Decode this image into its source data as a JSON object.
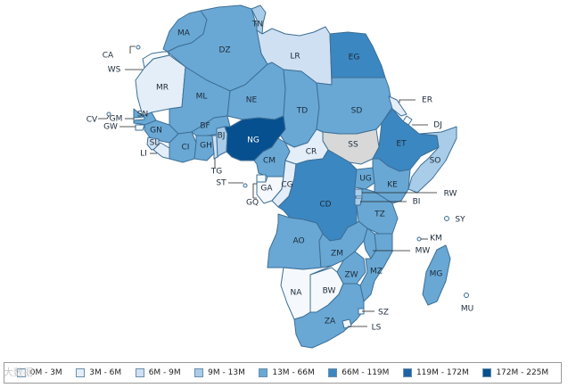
{
  "legend": {
    "bins": [
      {
        "label": "0M - 3M",
        "color": "#f5f9fd"
      },
      {
        "label": "3M - 6M",
        "color": "#e4eef8"
      },
      {
        "label": "6M - 9M",
        "color": "#cfe0f2"
      },
      {
        "label": "9M - 13M",
        "color": "#a9cce8"
      },
      {
        "label": "13M - 66M",
        "color": "#69a8d4"
      },
      {
        "label": "66M - 119M",
        "color": "#3b87c1"
      },
      {
        "label": "119M - 172M",
        "color": "#1d64a7"
      },
      {
        "label": "172M - 225M",
        "color": "#07508f"
      }
    ]
  },
  "no_data_color": "#d8d8d8",
  "watermark": "大数据",
  "countries": [
    {
      "code": "MA",
      "bin": 4
    },
    {
      "code": "DZ",
      "bin": 4
    },
    {
      "code": "TN",
      "bin": 3
    },
    {
      "code": "LR",
      "bin": 2
    },
    {
      "code": "EG",
      "bin": 5
    },
    {
      "code": "WS",
      "bin": 0
    },
    {
      "code": "MR",
      "bin": 1
    },
    {
      "code": "ML",
      "bin": 4
    },
    {
      "code": "NE",
      "bin": 4
    },
    {
      "code": "TD",
      "bin": 4
    },
    {
      "code": "SD",
      "bin": 4
    },
    {
      "code": "ER",
      "bin": 1
    },
    {
      "code": "DJ",
      "bin": 0
    },
    {
      "code": "SN",
      "bin": 4
    },
    {
      "code": "GM",
      "bin": 1
    },
    {
      "code": "GW",
      "bin": 0
    },
    {
      "code": "GN",
      "bin": 4
    },
    {
      "code": "SL",
      "bin": 2
    },
    {
      "code": "LI",
      "bin": 1
    },
    {
      "code": "CI",
      "bin": 4
    },
    {
      "code": "BF",
      "bin": 4
    },
    {
      "code": "GH",
      "bin": 4
    },
    {
      "code": "TG",
      "bin": 2
    },
    {
      "code": "BJ",
      "bin": 3
    },
    {
      "code": "NG",
      "bin": 7
    },
    {
      "code": "CM",
      "bin": 4
    },
    {
      "code": "CR",
      "bin": 1
    },
    {
      "code": "SS",
      "bin": -1
    },
    {
      "code": "ET",
      "bin": 5
    },
    {
      "code": "SO",
      "bin": 3
    },
    {
      "code": "ST",
      "bin": 0
    },
    {
      "code": "GQ",
      "bin": 0
    },
    {
      "code": "GA",
      "bin": 0
    },
    {
      "code": "CG",
      "bin": 1
    },
    {
      "code": "CD",
      "bin": 5
    },
    {
      "code": "UG",
      "bin": 4
    },
    {
      "code": "KE",
      "bin": 4
    },
    {
      "code": "RW",
      "bin": 3
    },
    {
      "code": "BI",
      "bin": 3
    },
    {
      "code": "TZ",
      "bin": 4
    },
    {
      "code": "SY",
      "bin": 0
    },
    {
      "code": "AO",
      "bin": 4
    },
    {
      "code": "ZM",
      "bin": 4
    },
    {
      "code": "MW",
      "bin": 4
    },
    {
      "code": "KM",
      "bin": 0
    },
    {
      "code": "MZ",
      "bin": 4
    },
    {
      "code": "ZW",
      "bin": 4
    },
    {
      "code": "MG",
      "bin": 4
    },
    {
      "code": "NA",
      "bin": 0
    },
    {
      "code": "BW",
      "bin": 0
    },
    {
      "code": "MU",
      "bin": 0
    },
    {
      "code": "SZ",
      "bin": 0
    },
    {
      "code": "ZA",
      "bin": 4
    },
    {
      "code": "LS",
      "bin": 0
    },
    {
      "code": "CV",
      "bin": 0
    },
    {
      "code": "CA",
      "bin": 0
    }
  ]
}
